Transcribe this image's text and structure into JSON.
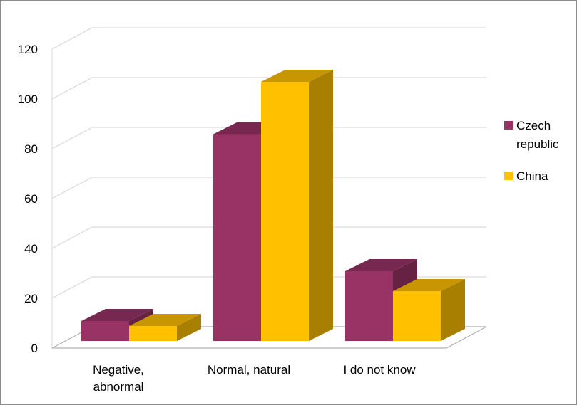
{
  "chart_data": {
    "type": "bar",
    "title": "",
    "xlabel": "",
    "ylabel": "",
    "categories": [
      [
        "Negative,",
        "abnormal"
      ],
      [
        "Normal, natural"
      ],
      [
        "I do not know"
      ]
    ],
    "series": [
      {
        "name": [
          "Czech",
          "republic"
        ],
        "color": "#993366",
        "values": [
          8,
          83,
          28
        ]
      },
      {
        "name": [
          "China"
        ],
        "color": "#ffc000",
        "values": [
          6,
          104,
          20
        ]
      }
    ],
    "ylim": [
      0,
      120
    ],
    "yticks": [
      0,
      20,
      40,
      60,
      80,
      100,
      120
    ],
    "grid": true,
    "legend": "right",
    "three_d": true
  }
}
